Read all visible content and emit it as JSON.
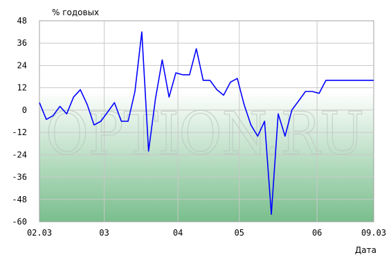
{
  "chart_data": {
    "type": "line",
    "title": "",
    "ylabel": "% годовых",
    "xlabel": "Дата",
    "ylim": [
      -60,
      48
    ],
    "yticks": [
      48,
      36,
      24,
      12,
      0,
      -12,
      -24,
      -36,
      -48,
      -60
    ],
    "xlim": [
      0,
      49
    ],
    "xticks": [
      {
        "x": 0,
        "label": "02.03"
      },
      {
        "x": 9.5,
        "label": "03"
      },
      {
        "x": 20.3,
        "label": "04"
      },
      {
        "x": 29.3,
        "label": "05"
      },
      {
        "x": 40.7,
        "label": "06"
      },
      {
        "x": 49,
        "label": "09.03"
      }
    ],
    "grid": true,
    "watermark": "OPTION.RU",
    "colors": {
      "line": "#0000ff",
      "grid": "#c8c8c8",
      "border": "#a0a0a0",
      "bg_top": "#ffffff",
      "bg_bottom": "#79be8c"
    },
    "series": [
      {
        "x": [
          0,
          1,
          2,
          3,
          4,
          5,
          6,
          7,
          8,
          9,
          10,
          11,
          12,
          13,
          14,
          15,
          16,
          17,
          18,
          19,
          20,
          21,
          22,
          23,
          24,
          25,
          26,
          27,
          28,
          29,
          30,
          31,
          32,
          33,
          34,
          35,
          36,
          37,
          38,
          39,
          40,
          41,
          42,
          43,
          44,
          45,
          46,
          47,
          48,
          49
        ],
        "values": [
          4,
          -5,
          -3,
          2,
          -2,
          7,
          11,
          3,
          -8,
          -6,
          -1,
          4,
          -6,
          -6,
          10,
          42,
          -22,
          6,
          27,
          7,
          20,
          19,
          19,
          33,
          16,
          16,
          11,
          8,
          15,
          17,
          3,
          -8,
          -14,
          -6,
          -56,
          -2,
          -14,
          0,
          5,
          10,
          10,
          9,
          16,
          16,
          16,
          16,
          16,
          16,
          16,
          16
        ]
      }
    ]
  }
}
